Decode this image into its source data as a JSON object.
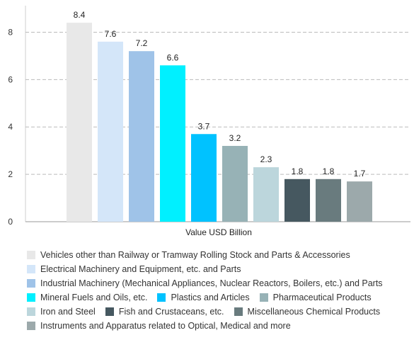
{
  "chart_data": {
    "type": "bar",
    "xlabel": "Value USD Billion",
    "ylabel": "",
    "ylim": [
      0,
      9
    ],
    "yticks": [
      0,
      2,
      4,
      6,
      8
    ],
    "grid": true,
    "legend_position": "bottom",
    "series": [
      {
        "name": "Vehicles other than Railway or Tramway Rolling Stock and Parts & Accessories",
        "value": 8.4,
        "label": "8.4",
        "color": "#e8e8e8"
      },
      {
        "name": "Electrical Machinery and Equipment, etc. and Parts",
        "value": 7.6,
        "label": "7.6",
        "color": "#d4e6f9"
      },
      {
        "name": "Industrial Machinery (Mechanical Appliances, Nuclear Reactors, Boilers, etc.) and Parts",
        "value": 7.2,
        "label": "7.2",
        "color": "#9fc3e8"
      },
      {
        "name": "Mineral Fuels and Oils, etc.",
        "value": 6.6,
        "label": "6.6",
        "color": "#00f0ff"
      },
      {
        "name": "Plastics and Articles",
        "value": 3.7,
        "label": "3.7",
        "color": "#00c2ff"
      },
      {
        "name": "Pharmaceutical Products",
        "value": 3.2,
        "label": "3.2",
        "color": "#97b2b6"
      },
      {
        "name": "Iron and Steel",
        "value": 2.3,
        "label": "2.3",
        "color": "#bcd6dc"
      },
      {
        "name": "Fish and Crustaceans, etc.",
        "value": 1.8,
        "label": "1.8",
        "color": "#465860"
      },
      {
        "name": "Miscellaneous Chemical Products",
        "value": 1.8,
        "label": "1.8",
        "color": "#697b7e"
      },
      {
        "name": "Instruments and Apparatus related to Optical, Medical and more",
        "value": 1.7,
        "label": "1.7",
        "color": "#9ca9ab"
      }
    ],
    "legend_rows": [
      [
        0
      ],
      [
        1
      ],
      [
        2
      ],
      [
        3,
        4,
        5
      ],
      [
        6,
        7,
        8
      ],
      [
        9
      ]
    ]
  }
}
